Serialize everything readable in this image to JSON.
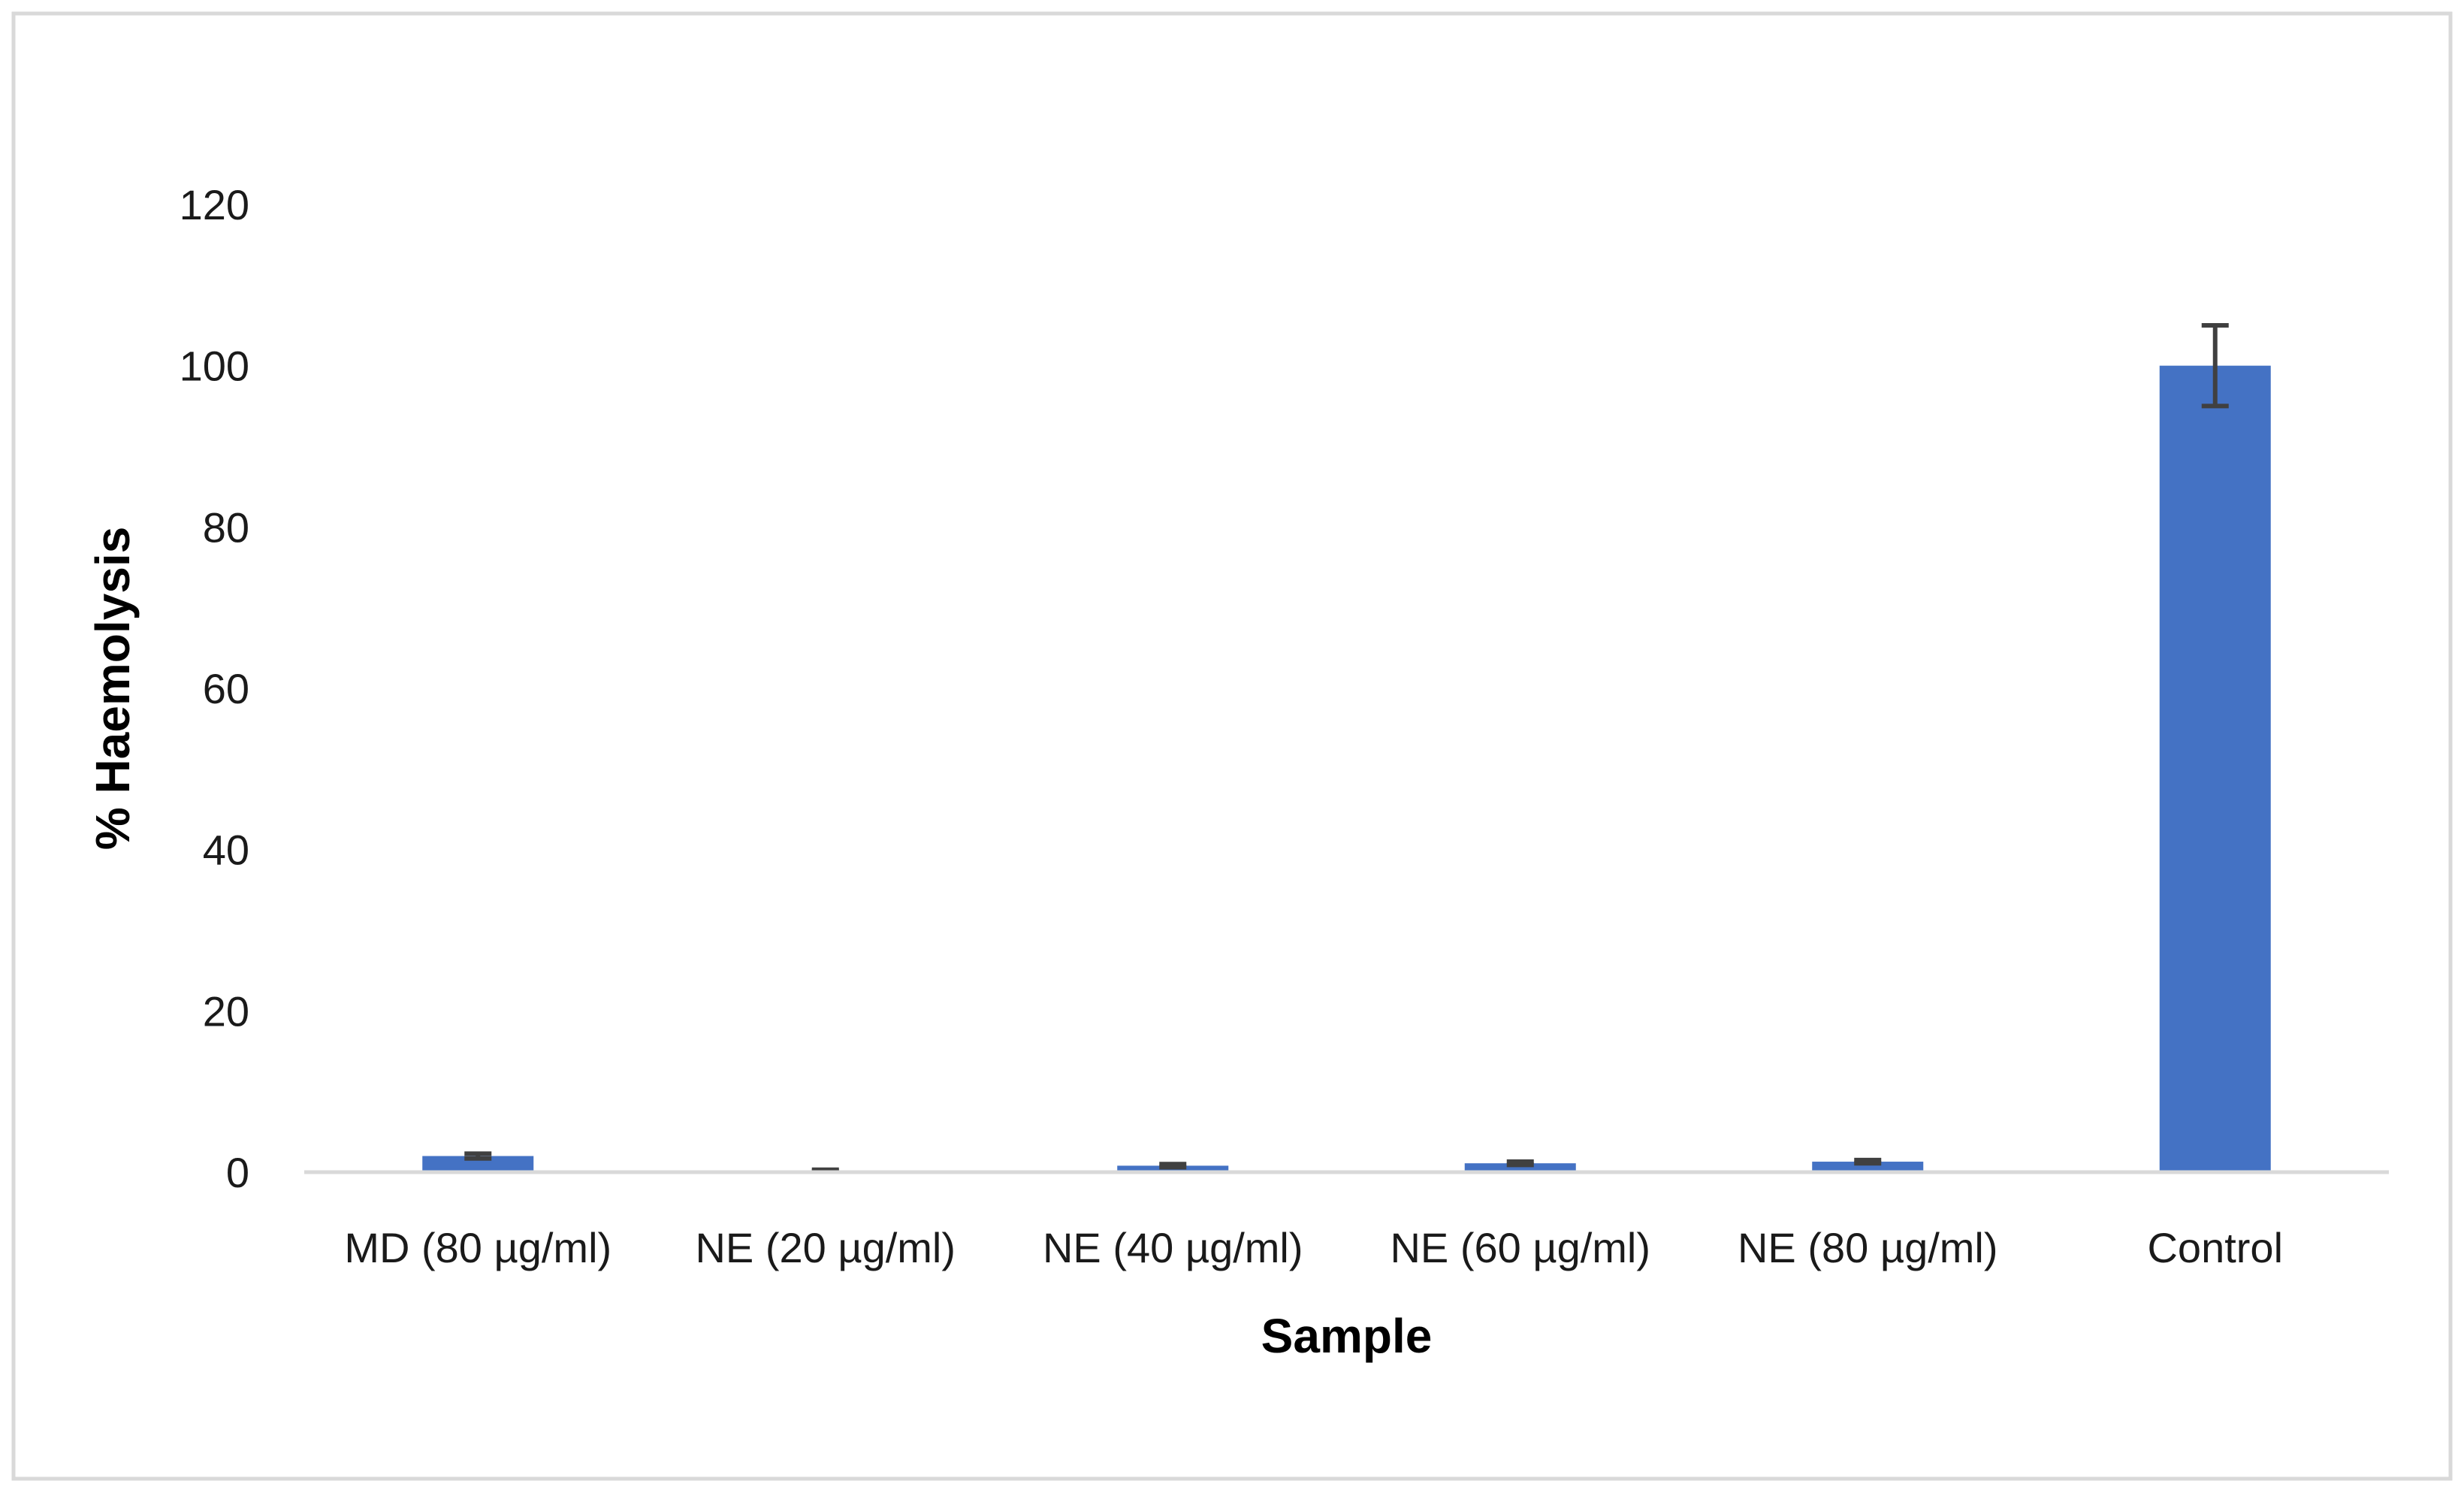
{
  "chart_data": {
    "type": "bar",
    "title": "",
    "xlabel": "Sample",
    "ylabel": "% Haemolysis",
    "categories": [
      "MD (80 µg/ml)",
      "NE (20 µg/ml)",
      "NE (40 µg/ml)",
      "NE (60 µg/ml)",
      "NE (80 µg/ml)",
      "Control"
    ],
    "values": [
      2.0,
      0.2,
      0.8,
      1.1,
      1.3,
      100
    ],
    "errors": [
      0.3,
      0.1,
      0.2,
      0.2,
      0.2,
      5
    ],
    "ylim": [
      0,
      120
    ],
    "yticks": [
      0,
      20,
      40,
      60,
      80,
      100,
      120
    ],
    "grid": false,
    "legend": "none",
    "colors": {
      "bar": "#4472C4",
      "error_bar": "#404040",
      "axis": "#D9D9D9",
      "frame": "#D9D9D9"
    }
  }
}
